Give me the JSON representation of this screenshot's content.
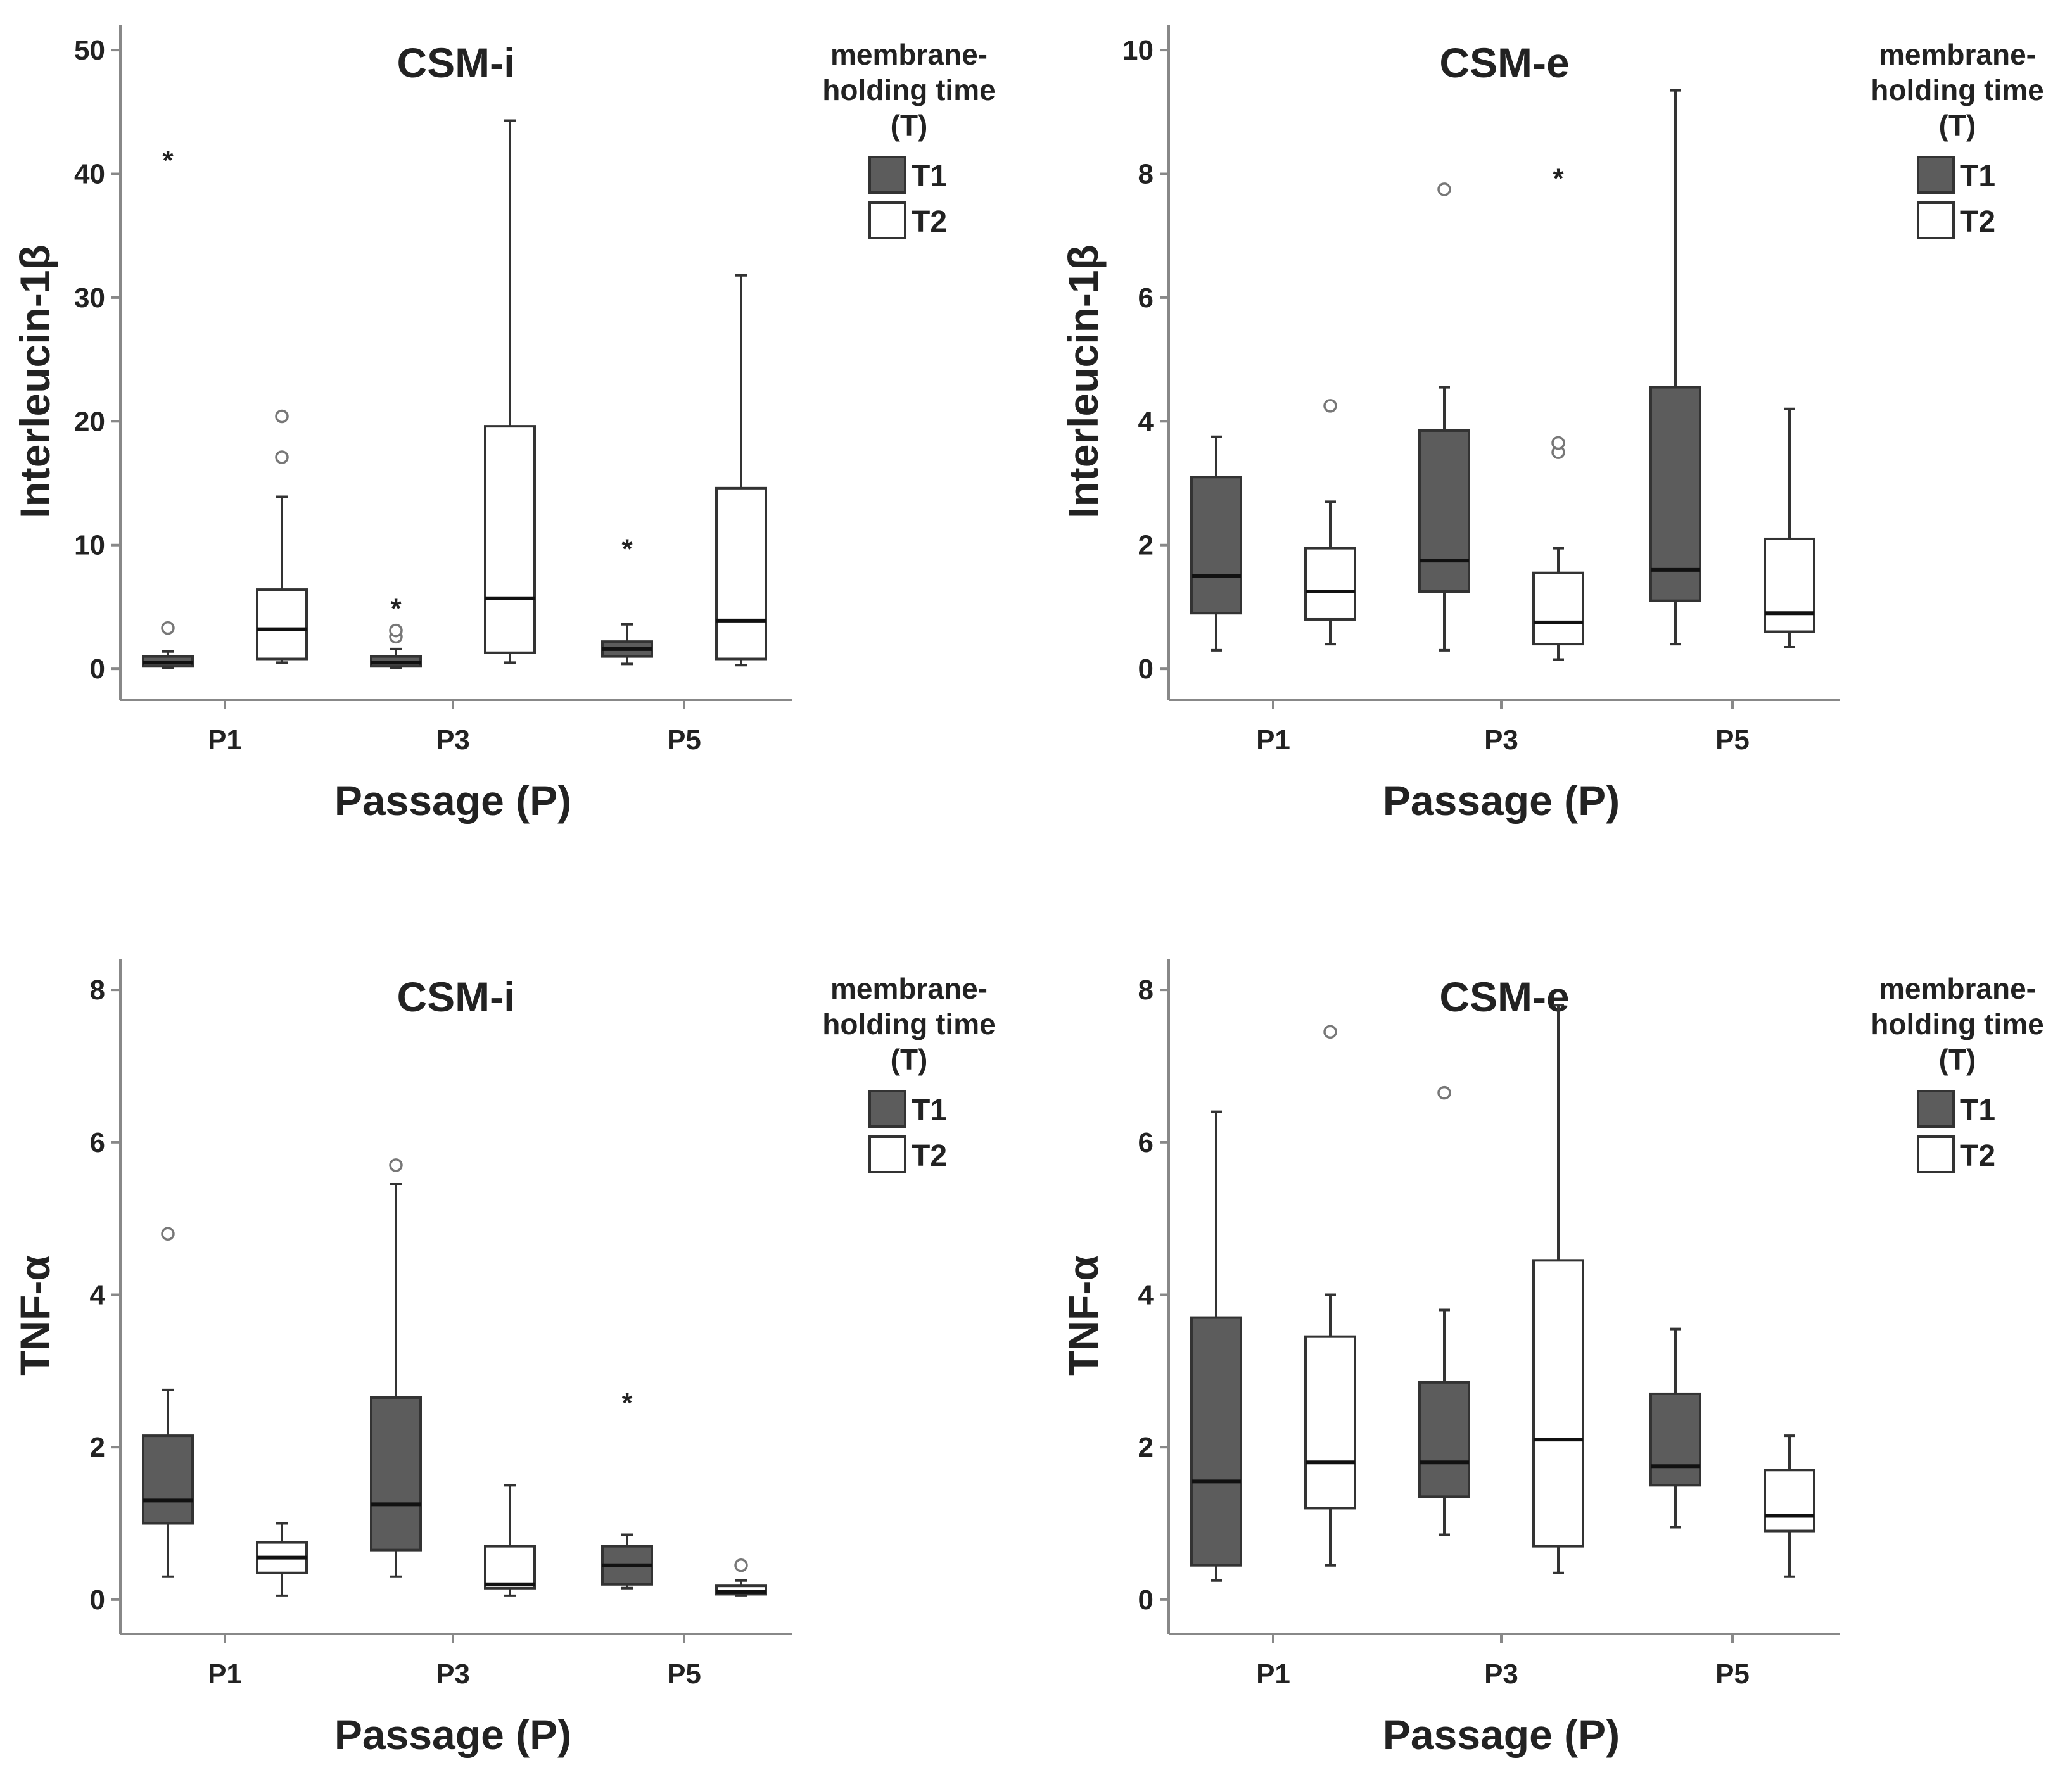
{
  "colors": {
    "t1_fill": "#5c5c5c",
    "t2_fill": "#ffffff",
    "stroke": "#333333",
    "axis": "#888888",
    "text": "#222222"
  },
  "chart_data": [
    {
      "type": "box",
      "title": "CSM-i",
      "xlabel": "Passage (P)",
      "ylabel": "Interleucin-1β",
      "ylim": [
        -2.5,
        52
      ],
      "yticks": [
        0,
        10,
        20,
        30,
        40,
        50
      ],
      "categories": [
        "P1",
        "P3",
        "P5"
      ],
      "legend": {
        "title": [
          "membrane-",
          "holding time",
          "(T)"
        ],
        "entries": [
          "T1",
          "T2"
        ]
      },
      "series": [
        {
          "name": "T1",
          "boxes": [
            {
              "whislo": 0.1,
              "q1": 0.2,
              "med": 0.5,
              "q3": 1.0,
              "whishi": 1.4,
              "circles": [
                3.3
              ],
              "stars": [
                41.2
              ]
            },
            {
              "whislo": 0.1,
              "q1": 0.2,
              "med": 0.5,
              "q3": 1.0,
              "whishi": 1.6,
              "circles": [
                2.6,
                3.1
              ],
              "stars": [
                5.0
              ]
            },
            {
              "whislo": 0.4,
              "q1": 1.0,
              "med": 1.6,
              "q3": 2.2,
              "whishi": 3.6,
              "circles": [],
              "stars": [
                9.8
              ]
            }
          ]
        },
        {
          "name": "T2",
          "boxes": [
            {
              "whislo": 0.5,
              "q1": 0.8,
              "med": 3.2,
              "q3": 6.4,
              "whishi": 13.9,
              "circles": [
                17.1,
                20.4
              ],
              "stars": []
            },
            {
              "whislo": 0.5,
              "q1": 1.3,
              "med": 5.7,
              "q3": 19.6,
              "whishi": 44.3,
              "circles": [],
              "stars": []
            },
            {
              "whislo": 0.3,
              "q1": 0.8,
              "med": 3.9,
              "q3": 14.6,
              "whishi": 31.8,
              "circles": [],
              "stars": []
            }
          ]
        }
      ]
    },
    {
      "type": "box",
      "title": "CSM-e",
      "xlabel": "Passage (P)",
      "ylabel": "Interleucin-1β",
      "ylim": [
        -0.5,
        10.4
      ],
      "yticks": [
        0,
        2,
        4,
        6,
        8,
        10
      ],
      "categories": [
        "P1",
        "P3",
        "P5"
      ],
      "legend": {
        "title": [
          "membrane-",
          "holding time",
          "(T)"
        ],
        "entries": [
          "T1",
          "T2"
        ]
      },
      "series": [
        {
          "name": "T1",
          "boxes": [
            {
              "whislo": 0.3,
              "q1": 0.9,
              "med": 1.5,
              "q3": 3.1,
              "whishi": 3.75,
              "circles": [],
              "stars": []
            },
            {
              "whislo": 0.3,
              "q1": 1.25,
              "med": 1.75,
              "q3": 3.85,
              "whishi": 4.55,
              "circles": [
                7.75
              ],
              "stars": []
            },
            {
              "whislo": 0.4,
              "q1": 1.1,
              "med": 1.6,
              "q3": 4.55,
              "whishi": 9.35,
              "circles": [],
              "stars": []
            }
          ]
        },
        {
          "name": "T2",
          "boxes": [
            {
              "whislo": 0.4,
              "q1": 0.8,
              "med": 1.25,
              "q3": 1.95,
              "whishi": 2.7,
              "circles": [
                4.25
              ],
              "stars": []
            },
            {
              "whislo": 0.15,
              "q1": 0.4,
              "med": 0.75,
              "q3": 1.55,
              "whishi": 1.95,
              "circles": [
                3.5,
                3.65
              ],
              "stars": [
                7.95
              ]
            },
            {
              "whislo": 0.35,
              "q1": 0.6,
              "med": 0.9,
              "q3": 2.1,
              "whishi": 4.2,
              "circles": [],
              "stars": []
            }
          ]
        }
      ]
    },
    {
      "type": "box",
      "title": "CSM-i",
      "xlabel": "Passage (P)",
      "ylabel": "TNF-α",
      "ylim": [
        -0.45,
        8.4
      ],
      "yticks": [
        0,
        2,
        4,
        6,
        8
      ],
      "categories": [
        "P1",
        "P3",
        "P5"
      ],
      "legend": {
        "title": [
          "membrane-",
          "holding time",
          "(T)"
        ],
        "entries": [
          "T1",
          "T2"
        ]
      },
      "series": [
        {
          "name": "T1",
          "boxes": [
            {
              "whislo": 0.3,
              "q1": 1.0,
              "med": 1.3,
              "q3": 2.15,
              "whishi": 2.75,
              "circles": [
                4.8
              ],
              "stars": []
            },
            {
              "whislo": 0.3,
              "q1": 0.65,
              "med": 1.25,
              "q3": 2.65,
              "whishi": 5.45,
              "circles": [
                5.7
              ],
              "stars": []
            },
            {
              "whislo": 0.15,
              "q1": 0.2,
              "med": 0.45,
              "q3": 0.7,
              "whishi": 0.85,
              "circles": [],
              "stars": [
                2.6
              ]
            }
          ]
        },
        {
          "name": "T2",
          "boxes": [
            {
              "whislo": 0.05,
              "q1": 0.35,
              "med": 0.55,
              "q3": 0.75,
              "whishi": 1.0,
              "circles": [],
              "stars": []
            },
            {
              "whislo": 0.05,
              "q1": 0.15,
              "med": 0.2,
              "q3": 0.7,
              "whishi": 1.5,
              "circles": [],
              "stars": []
            },
            {
              "whislo": 0.05,
              "q1": 0.07,
              "med": 0.1,
              "q3": 0.18,
              "whishi": 0.25,
              "circles": [
                0.45
              ],
              "stars": []
            }
          ]
        }
      ]
    },
    {
      "type": "box",
      "title": "CSM-e",
      "xlabel": "Passage (P)",
      "ylabel": "TNF-α",
      "ylim": [
        -0.45,
        8.4
      ],
      "yticks": [
        0,
        2,
        4,
        6,
        8
      ],
      "categories": [
        "P1",
        "P3",
        "P5"
      ],
      "legend": {
        "title": [
          "membrane-",
          "holding time",
          "(T)"
        ],
        "entries": [
          "T1",
          "T2"
        ]
      },
      "series": [
        {
          "name": "T1",
          "boxes": [
            {
              "whislo": 0.25,
              "q1": 0.45,
              "med": 1.55,
              "q3": 3.7,
              "whishi": 6.4,
              "circles": [],
              "stars": []
            },
            {
              "whislo": 0.85,
              "q1": 1.35,
              "med": 1.8,
              "q3": 2.85,
              "whishi": 3.8,
              "circles": [
                6.65
              ],
              "stars": []
            },
            {
              "whislo": 0.95,
              "q1": 1.5,
              "med": 1.75,
              "q3": 2.7,
              "whishi": 3.55,
              "circles": [],
              "stars": []
            }
          ]
        },
        {
          "name": "T2",
          "boxes": [
            {
              "whislo": 0.45,
              "q1": 1.2,
              "med": 1.8,
              "q3": 3.45,
              "whishi": 4.0,
              "circles": [
                7.45
              ],
              "stars": []
            },
            {
              "whislo": 0.35,
              "q1": 0.7,
              "med": 2.1,
              "q3": 4.45,
              "whishi": 7.8,
              "circles": [],
              "stars": []
            },
            {
              "whislo": 0.3,
              "q1": 0.9,
              "med": 1.1,
              "q3": 1.7,
              "whishi": 2.15,
              "circles": [],
              "stars": []
            }
          ]
        }
      ]
    }
  ]
}
